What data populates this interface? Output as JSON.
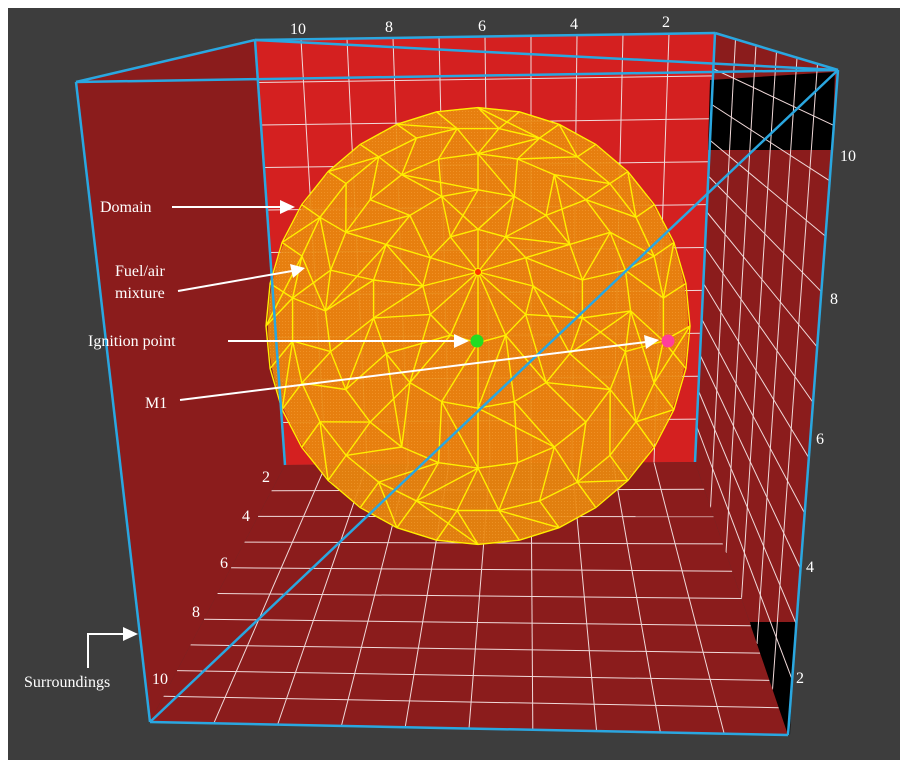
{
  "labels": {
    "domain": "Domain",
    "fuel_air_line1": "Fuel/air",
    "fuel_air_line2": "mixture",
    "ignition_point": "Ignition point",
    "m1": "M1",
    "surroundings": "Surroundings"
  },
  "axes": {
    "top_ticks": [
      "10",
      "8",
      "6",
      "4",
      "2"
    ],
    "right_ticks": [
      "10",
      "8",
      "6",
      "4",
      "2"
    ],
    "floor_ticks": [
      "2",
      "4",
      "6",
      "8",
      "10"
    ]
  },
  "colors": {
    "background": "#3d3d3d",
    "box_edge": "#2aa7e0",
    "back_wall": "#d42020",
    "side_wall": "#8b1c1c",
    "sphere_fill": "#e8860e",
    "sphere_mesh": "#ffee00",
    "ignition_point": "#22dd22",
    "m1_point": "#ff3f9a"
  }
}
